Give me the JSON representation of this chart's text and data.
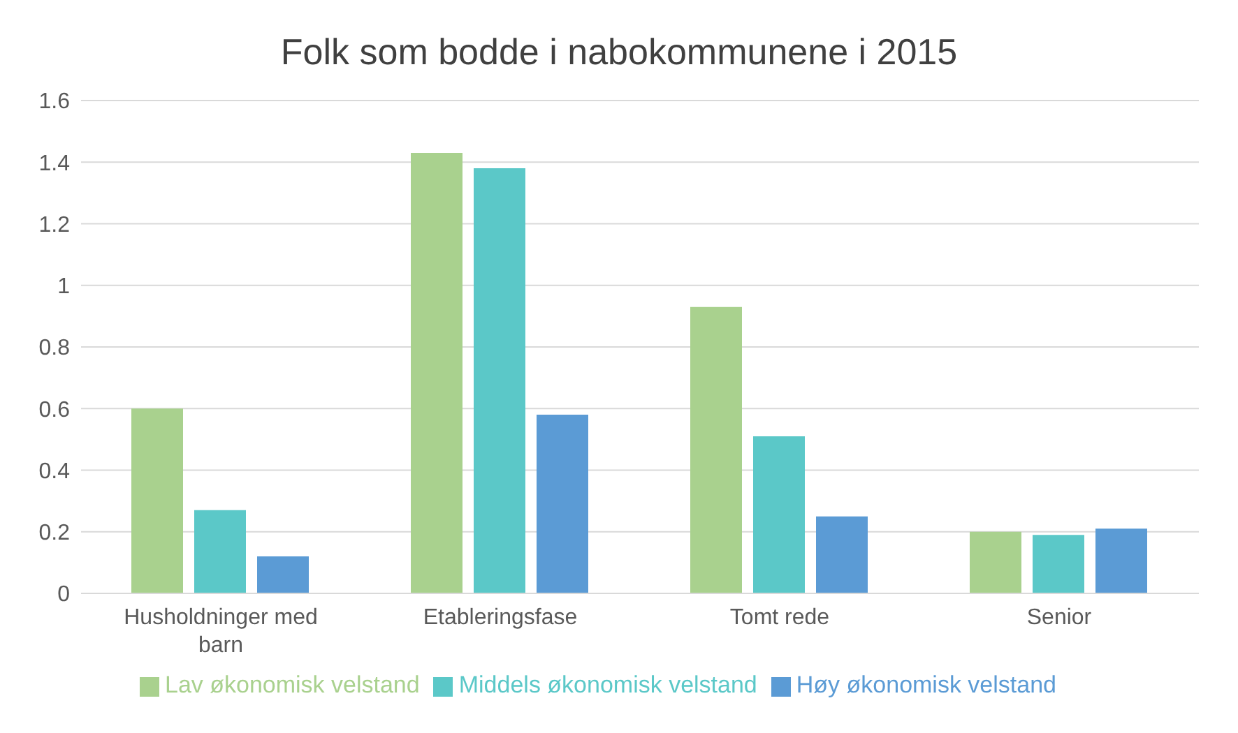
{
  "chart_data": {
    "type": "bar",
    "title": "Folk som bodde i nabokommunene  i 2015",
    "categories": [
      "Husholdninger med barn",
      "Etableringsfase",
      "Tomt rede",
      "Senior"
    ],
    "series": [
      {
        "name": "Lav økonomisk velstand",
        "color": "#a9d18e",
        "values": [
          0.6,
          1.43,
          0.93,
          0.2
        ]
      },
      {
        "name": "Middels økonomisk velstand",
        "color": "#5bc8c8",
        "values": [
          0.27,
          1.38,
          0.51,
          0.19
        ]
      },
      {
        "name": "Høy økonomisk velstand",
        "color": "#5b9bd5",
        "values": [
          0.12,
          0.58,
          0.25,
          0.21
        ]
      }
    ],
    "ylim": [
      0,
      1.6
    ],
    "yticks": [
      0,
      0.2,
      0.4,
      0.6,
      0.8,
      1,
      1.2,
      1.4,
      1.6
    ],
    "grid": "y",
    "legend": "bottom"
  }
}
